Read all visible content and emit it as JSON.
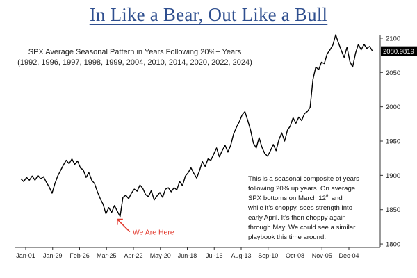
{
  "title": "In Like a Bear, Out Like a Bull",
  "subtitle_line1": "SPX Average Seasonal Pattern in Years Following 20%+ Years",
  "subtitle_line2": "(1992, 1996, 1997, 1998, 1999, 2004, 2010, 2014, 2020, 2022, 2024)",
  "note": {
    "line1": "This is a seasonal composite of years",
    "line2": "following 20% up years. On average",
    "line3_pre": "SPX bottoms on March 12",
    "line3_sup": "th",
    "line3_post": " and",
    "line4": "while it’s choppy, sees strength into",
    "line5": "early April. It’s then choppy again",
    "line6": "through May. We could see a similar",
    "line7": "playbook this time around."
  },
  "colors": {
    "line": "#000000",
    "title": "#2f4f8f",
    "annotation": "#e23a2e",
    "last_value_box": "#000000"
  },
  "chart_data": {
    "type": "line",
    "x_tick_labels": [
      "Jan-01",
      "Jan-29",
      "Feb-26",
      "Mar-25",
      "Apr-22",
      "May-20",
      "Jun-18",
      "Jul-16",
      "Aug-13",
      "Sep-10",
      "Oct-08",
      "Nov-05",
      "Dec-04"
    ],
    "y_ticks": [
      1800,
      1850,
      1900,
      1950,
      2000,
      2050,
      2100
    ],
    "ylim": [
      1795,
      2105
    ],
    "y_axis_side": "right",
    "last_value_label": "2080.9819",
    "annotation": {
      "text": "We Are Here",
      "near": "Mar-12"
    },
    "series": [
      {
        "values": [
          [
            0,
            1895
          ],
          [
            1,
            1891
          ],
          [
            2,
            1897
          ],
          [
            3,
            1893
          ],
          [
            4,
            1899
          ],
          [
            5,
            1893
          ],
          [
            6,
            1900
          ],
          [
            7,
            1895
          ],
          [
            8,
            1898
          ],
          [
            9,
            1890
          ],
          [
            10,
            1883
          ],
          [
            11,
            1874
          ],
          [
            12,
            1888
          ],
          [
            13,
            1899
          ],
          [
            14,
            1907
          ],
          [
            15,
            1915
          ],
          [
            16,
            1922
          ],
          [
            17,
            1917
          ],
          [
            18,
            1924
          ],
          [
            19,
            1916
          ],
          [
            20,
            1921
          ],
          [
            21,
            1911
          ],
          [
            22,
            1908
          ],
          [
            23,
            1897
          ],
          [
            24,
            1904
          ],
          [
            25,
            1893
          ],
          [
            26,
            1888
          ],
          [
            27,
            1876
          ],
          [
            28,
            1866
          ],
          [
            29,
            1858
          ],
          [
            30,
            1844
          ],
          [
            31,
            1853
          ],
          [
            32,
            1846
          ],
          [
            33,
            1856
          ],
          [
            34,
            1848
          ],
          [
            35,
            1840
          ],
          [
            36,
            1868
          ],
          [
            37,
            1871
          ],
          [
            38,
            1866
          ],
          [
            39,
            1874
          ],
          [
            40,
            1880
          ],
          [
            41,
            1877
          ],
          [
            42,
            1886
          ],
          [
            43,
            1881
          ],
          [
            44,
            1872
          ],
          [
            45,
            1869
          ],
          [
            46,
            1878
          ],
          [
            47,
            1864
          ],
          [
            48,
            1870
          ],
          [
            49,
            1875
          ],
          [
            50,
            1868
          ],
          [
            51,
            1880
          ],
          [
            52,
            1882
          ],
          [
            53,
            1876
          ],
          [
            54,
            1882
          ],
          [
            55,
            1879
          ],
          [
            56,
            1891
          ],
          [
            57,
            1885
          ],
          [
            58,
            1899
          ],
          [
            59,
            1904
          ],
          [
            60,
            1911
          ],
          [
            61,
            1903
          ],
          [
            62,
            1896
          ],
          [
            63,
            1907
          ],
          [
            64,
            1920
          ],
          [
            65,
            1913
          ],
          [
            66,
            1924
          ],
          [
            67,
            1922
          ],
          [
            68,
            1931
          ],
          [
            69,
            1940
          ],
          [
            70,
            1927
          ],
          [
            71,
            1936
          ],
          [
            72,
            1944
          ],
          [
            73,
            1934
          ],
          [
            74,
            1944
          ],
          [
            75,
            1960
          ],
          [
            76,
            1970
          ],
          [
            77,
            1978
          ],
          [
            78,
            1988
          ],
          [
            79,
            1993
          ],
          [
            80,
            1980
          ],
          [
            81,
            1966
          ],
          [
            82,
            1947
          ],
          [
            83,
            1940
          ],
          [
            84,
            1955
          ],
          [
            85,
            1941
          ],
          [
            86,
            1932
          ],
          [
            87,
            1928
          ],
          [
            88,
            1936
          ],
          [
            89,
            1945
          ],
          [
            90,
            1936
          ],
          [
            91,
            1952
          ],
          [
            92,
            1962
          ],
          [
            93,
            1950
          ],
          [
            94,
            1966
          ],
          [
            95,
            1972
          ],
          [
            96,
            1984
          ],
          [
            97,
            1976
          ],
          [
            98,
            1985
          ],
          [
            99,
            1980
          ],
          [
            100,
            1990
          ],
          [
            101,
            1993
          ],
          [
            102,
            1999
          ],
          [
            103,
            2040
          ],
          [
            104,
            2058
          ],
          [
            105,
            2054
          ],
          [
            106,
            2065
          ],
          [
            107,
            2063
          ],
          [
            108,
            2077
          ],
          [
            109,
            2083
          ],
          [
            110,
            2090
          ],
          [
            111,
            2105
          ],
          [
            112,
            2093
          ],
          [
            113,
            2082
          ],
          [
            114,
            2072
          ],
          [
            115,
            2087
          ],
          [
            116,
            2066
          ],
          [
            117,
            2058
          ],
          [
            118,
            2078
          ],
          [
            119,
            2091
          ],
          [
            120,
            2083
          ],
          [
            121,
            2091
          ],
          [
            122,
            2085
          ],
          [
            123,
            2088
          ],
          [
            124,
            2081
          ]
        ]
      }
    ]
  }
}
